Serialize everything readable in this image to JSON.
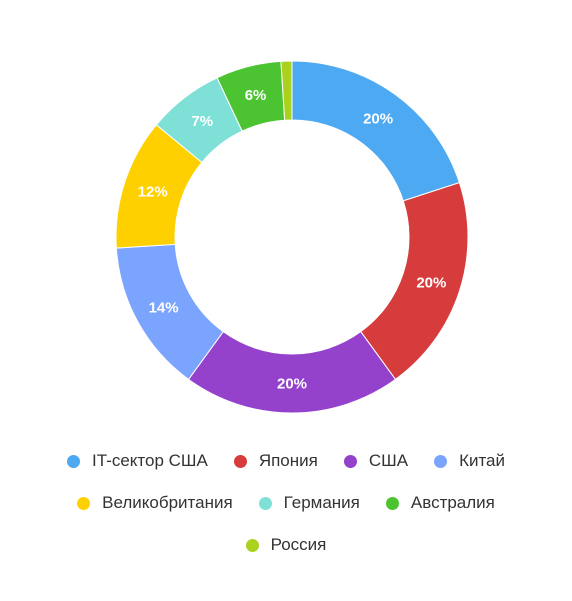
{
  "chart_data": {
    "type": "pie",
    "donut": true,
    "categories": [
      "IT-сектор США",
      "Япония",
      "США",
      "Китай",
      "Великобритания",
      "Германия",
      "Австралия",
      "Россия"
    ],
    "values": [
      20,
      20,
      20,
      14,
      12,
      7,
      6,
      1
    ],
    "labels": [
      "20%",
      "20%",
      "20%",
      "14%",
      "12%",
      "7%",
      "6%",
      ""
    ],
    "colors": [
      "#4DA9F2",
      "#D63C3C",
      "#9442CC",
      "#7BA4FF",
      "#FFD000",
      "#7FE0D8",
      "#4CC431",
      "#A9D11E"
    ],
    "legend_position": "bottom"
  }
}
